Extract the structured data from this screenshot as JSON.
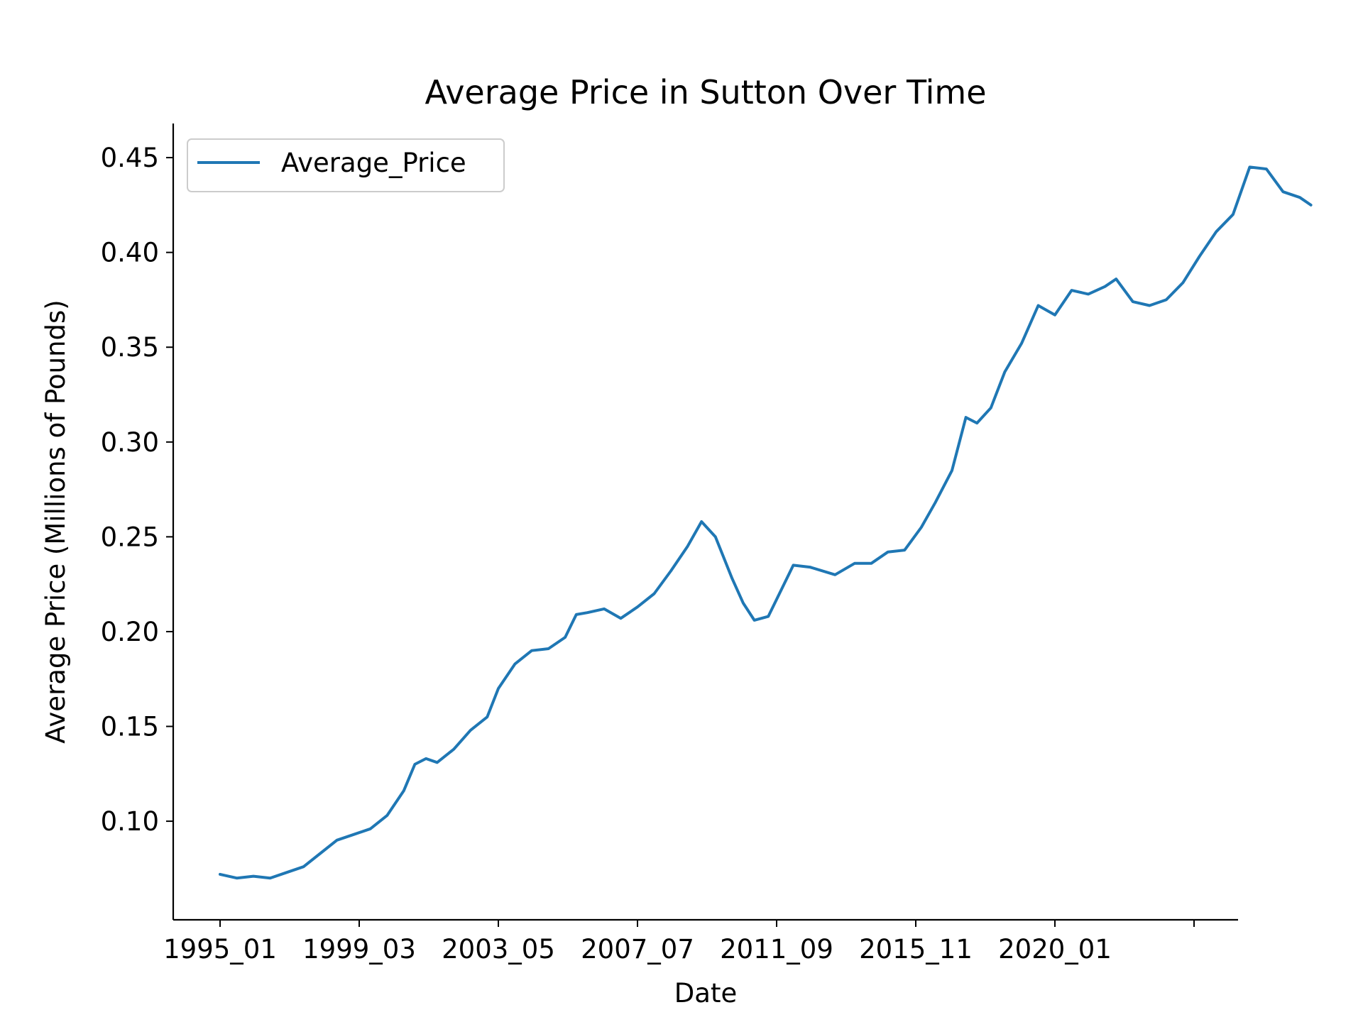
{
  "chart_data": {
    "type": "line",
    "title": "Average Price in Sutton Over Time",
    "xlabel": "Date",
    "ylabel": "Average Price (Millions of Pounds)",
    "ylim": [
      0.048,
      0.468
    ],
    "grid": false,
    "legend_position": "top-left",
    "x_tick_labels": [
      "1995_01",
      "1999_03",
      "2003_05",
      "2007_07",
      "2011_09",
      "2015_11",
      "2020_01",
      ""
    ],
    "y_ticks": [
      0.1,
      0.15,
      0.2,
      0.25,
      0.3,
      0.35,
      0.4,
      0.45
    ],
    "y_tick_labels": [
      "0.10",
      "0.15",
      "0.20",
      "0.25",
      "0.30",
      "0.35",
      "0.40",
      "0.45"
    ],
    "series": [
      {
        "name": "Average_Price",
        "color": "#1f77b4",
        "points": [
          [
            "1995-01",
            0.072
          ],
          [
            "1995-07",
            0.07
          ],
          [
            "1996-01",
            0.071
          ],
          [
            "1996-07",
            0.07
          ],
          [
            "1997-01",
            0.073
          ],
          [
            "1997-07",
            0.076
          ],
          [
            "1998-01",
            0.083
          ],
          [
            "1998-07",
            0.09
          ],
          [
            "1999-01",
            0.093
          ],
          [
            "1999-07",
            0.096
          ],
          [
            "2000-01",
            0.103
          ],
          [
            "2000-07",
            0.116
          ],
          [
            "2000-11",
            0.13
          ],
          [
            "2001-03",
            0.133
          ],
          [
            "2001-07",
            0.131
          ],
          [
            "2002-01",
            0.138
          ],
          [
            "2002-07",
            0.148
          ],
          [
            "2003-01",
            0.155
          ],
          [
            "2003-05",
            0.17
          ],
          [
            "2003-11",
            0.183
          ],
          [
            "2004-05",
            0.19
          ],
          [
            "2004-11",
            0.191
          ],
          [
            "2005-05",
            0.197
          ],
          [
            "2005-09",
            0.209
          ],
          [
            "2006-01",
            0.21
          ],
          [
            "2006-07",
            0.212
          ],
          [
            "2007-01",
            0.207
          ],
          [
            "2007-07",
            0.213
          ],
          [
            "2008-01",
            0.22
          ],
          [
            "2008-07",
            0.232
          ],
          [
            "2009-01",
            0.245
          ],
          [
            "2009-06",
            0.258
          ],
          [
            "2009-11",
            0.25
          ],
          [
            "2010-05",
            0.228
          ],
          [
            "2010-09",
            0.215
          ],
          [
            "2011-01",
            0.206
          ],
          [
            "2011-06",
            0.208
          ],
          [
            "2011-09",
            0.217
          ],
          [
            "2012-03",
            0.235
          ],
          [
            "2012-09",
            0.234
          ],
          [
            "2013-06",
            0.23
          ],
          [
            "2014-01",
            0.236
          ],
          [
            "2014-07",
            0.236
          ],
          [
            "2015-01",
            0.242
          ],
          [
            "2015-07",
            0.243
          ],
          [
            "2016-01",
            0.255
          ],
          [
            "2016-06",
            0.268
          ],
          [
            "2016-12",
            0.285
          ],
          [
            "2017-05",
            0.313
          ],
          [
            "2017-09",
            0.31
          ],
          [
            "2018-02",
            0.318
          ],
          [
            "2018-07",
            0.337
          ],
          [
            "2019-01",
            0.352
          ],
          [
            "2019-07",
            0.372
          ],
          [
            "2020-01",
            0.367
          ],
          [
            "2020-07",
            0.38
          ],
          [
            "2021-01",
            0.378
          ],
          [
            "2021-07",
            0.382
          ],
          [
            "2021-11",
            0.386
          ],
          [
            "2022-05",
            0.374
          ],
          [
            "2022-11",
            0.372
          ],
          [
            "2023-05",
            0.375
          ],
          [
            "2023-11",
            0.384
          ],
          [
            "2024-05",
            0.398
          ],
          [
            "2024-11",
            0.411
          ],
          [
            "2025-05",
            0.42
          ],
          [
            "2025-11",
            0.445
          ],
          [
            "2026-05",
            0.444
          ],
          [
            "2026-11",
            0.432
          ],
          [
            "2027-05",
            0.429
          ],
          [
            "2027-09",
            0.425
          ]
        ]
      }
    ]
  }
}
